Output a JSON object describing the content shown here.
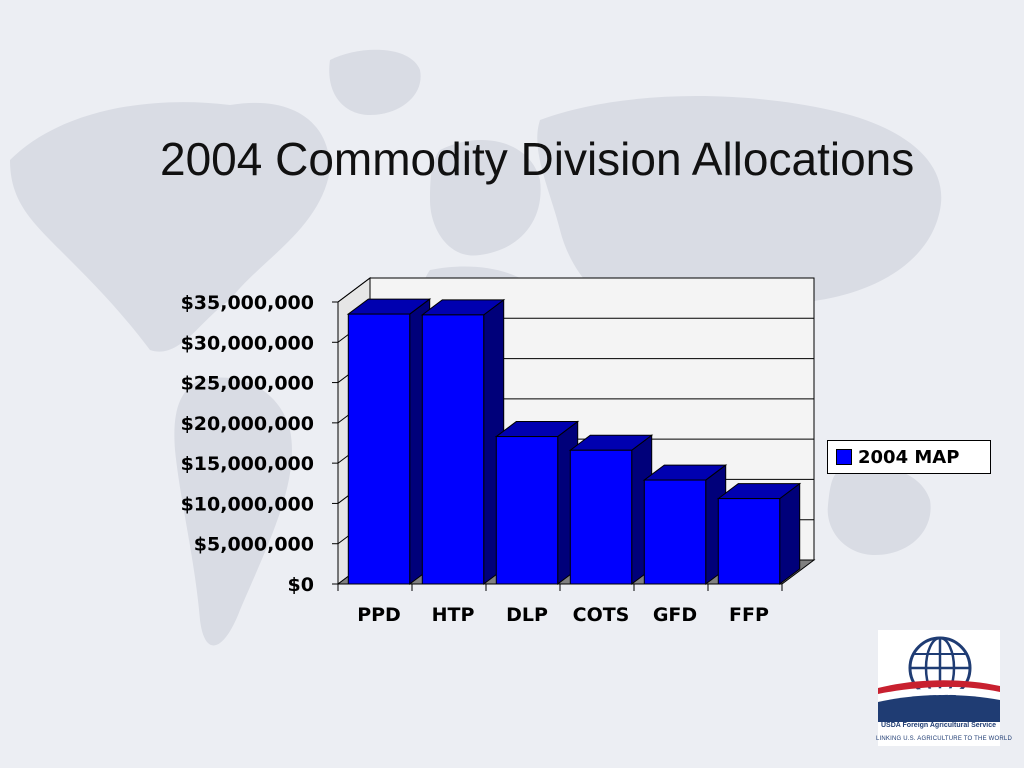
{
  "slide": {
    "title": "2004 Commodity Division Allocations"
  },
  "chart_data": {
    "type": "bar",
    "style": "3d-column",
    "categories": [
      "PPD",
      "HTP",
      "DLP",
      "COTS",
      "GFD",
      "FFP"
    ],
    "series": [
      {
        "name": "2004 MAP",
        "values": [
          33500000,
          33400000,
          18300000,
          16600000,
          12900000,
          10600000
        ],
        "color": "#0000ff"
      }
    ],
    "y_ticks": [
      "$0",
      "$5,000,000",
      "$10,000,000",
      "$15,000,000",
      "$20,000,000",
      "$25,000,000",
      "$30,000,000",
      "$35,000,000"
    ],
    "ylim": [
      0,
      35000000
    ],
    "grid": true,
    "legend_position": "right"
  },
  "logo": {
    "line1": "USDA Foreign Agricultural Service",
    "line2": "LINKING U.S. AGRICULTURE TO THE WORLD"
  }
}
